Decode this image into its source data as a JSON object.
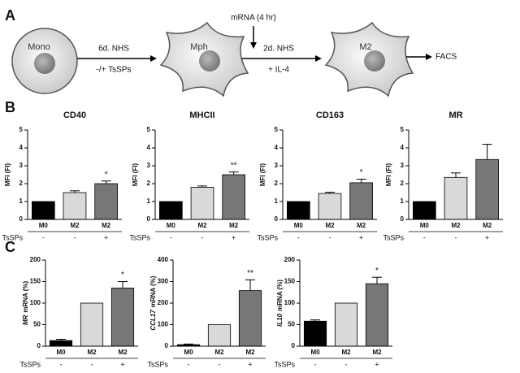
{
  "figure": {
    "panels": [
      "A",
      "B",
      "C"
    ]
  },
  "diagram": {
    "mono": "Mono",
    "step1_top": "6d. NHS",
    "step1_bottom": "-/+ TsSPs",
    "mph": "Mph",
    "mrna": "mRNA (4 hr)",
    "step2_top": "2d. NHS",
    "step2_bottom": "+ IL-4",
    "m2": "M2",
    "facs": "FACS"
  },
  "chart_data": [
    {
      "type": "bar",
      "title": "CD40",
      "ylabel": "MFI (FI)",
      "categories": [
        "M0",
        "M2",
        "M2"
      ],
      "values": [
        1,
        1.5,
        2.0
      ],
      "errors": [
        null,
        0.1,
        0.15
      ],
      "annotations": [
        null,
        null,
        "*"
      ],
      "colors": [
        "#000000",
        "#d9d9d9",
        "#777777"
      ],
      "ylim": [
        0,
        5
      ],
      "yticks": [
        0,
        1,
        2,
        3,
        4,
        5
      ],
      "treatment_label": "TsSPs",
      "treatment": [
        "-",
        "-",
        "+"
      ]
    },
    {
      "type": "bar",
      "title": "MHCII",
      "ylabel": "MFI (FI)",
      "categories": [
        "M0",
        "M2",
        "M2"
      ],
      "values": [
        1,
        1.8,
        2.5
      ],
      "errors": [
        null,
        0.07,
        0.15
      ],
      "annotations": [
        null,
        null,
        "**"
      ],
      "colors": [
        "#000000",
        "#d9d9d9",
        "#777777"
      ],
      "ylim": [
        0,
        5
      ],
      "yticks": [
        0,
        1,
        2,
        3,
        4,
        5
      ],
      "treatment_label": "TsSPs",
      "treatment": [
        "-",
        "-",
        "+"
      ]
    },
    {
      "type": "bar",
      "title": "CD163",
      "ylabel": "MFI (FI)",
      "categories": [
        "M0",
        "M2",
        "M2"
      ],
      "values": [
        1,
        1.45,
        2.05
      ],
      "errors": [
        null,
        0.07,
        0.2
      ],
      "annotations": [
        null,
        null,
        "*"
      ],
      "colors": [
        "#000000",
        "#d9d9d9",
        "#777777"
      ],
      "ylim": [
        0,
        5
      ],
      "yticks": [
        0,
        1,
        2,
        3,
        4,
        5
      ],
      "treatment_label": "TsSPs",
      "treatment": [
        "-",
        "-",
        "+"
      ]
    },
    {
      "type": "bar",
      "title": "MR",
      "ylabel": "MFI (FI)",
      "categories": [
        "M0",
        "M2",
        "M2"
      ],
      "values": [
        1,
        2.35,
        3.35
      ],
      "errors": [
        null,
        0.25,
        0.85
      ],
      "colors": [
        "#000000",
        "#d9d9d9",
        "#777777"
      ],
      "ylim": [
        0,
        5
      ],
      "yticks": [
        0,
        1,
        2,
        3,
        4,
        5
      ],
      "treatment_label": "TsSPs",
      "treatment": [
        "-",
        "-",
        "+"
      ]
    },
    {
      "type": "bar",
      "gene": "MR",
      "ylabel": "mRNA (%)",
      "categories": [
        "M0",
        "M2",
        "M2"
      ],
      "values": [
        13,
        100,
        135
      ],
      "errors": [
        3,
        null,
        15
      ],
      "annotations": [
        null,
        null,
        "*"
      ],
      "colors": [
        "#000000",
        "#d9d9d9",
        "#777777"
      ],
      "ylim": [
        0,
        200
      ],
      "yticks": [
        0,
        50,
        100,
        150,
        200
      ],
      "treatment_label": "TsSPs",
      "treatment": [
        "-",
        "-",
        "+"
      ]
    },
    {
      "type": "bar",
      "gene": "CCL17",
      "ylabel": "mRNA (%)",
      "categories": [
        "M0",
        "M2",
        "M2"
      ],
      "values": [
        7,
        100,
        258
      ],
      "errors": [
        3,
        null,
        50
      ],
      "annotations": [
        null,
        null,
        "**"
      ],
      "colors": [
        "#000000",
        "#d9d9d9",
        "#777777"
      ],
      "ylim": [
        0,
        400
      ],
      "yticks": [
        0,
        100,
        200,
        300,
        400
      ],
      "treatment_label": "TsSPs",
      "treatment": [
        "-",
        "-",
        "+"
      ]
    },
    {
      "type": "bar",
      "gene": "IL10",
      "ylabel": "mRNA (%)",
      "categories": [
        "M0",
        "M2",
        "M2"
      ],
      "values": [
        58,
        100,
        145
      ],
      "errors": [
        3,
        null,
        15
      ],
      "annotations": [
        null,
        null,
        "*"
      ],
      "colors": [
        "#000000",
        "#d9d9d9",
        "#777777"
      ],
      "ylim": [
        0,
        200
      ],
      "yticks": [
        0,
        50,
        100,
        150,
        200
      ],
      "treatment_label": "TsSPs",
      "treatment": [
        "-",
        "-",
        "+"
      ]
    }
  ]
}
